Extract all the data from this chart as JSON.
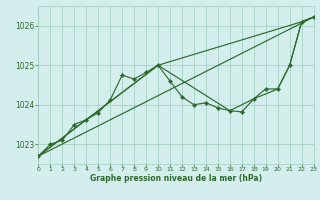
{
  "background_color": "#d4eeee",
  "grid_color": "#a0ccbc",
  "line_color": "#2d6b2d",
  "xlim": [
    0,
    23
  ],
  "ylim": [
    1022.5,
    1026.5
  ],
  "yticks": [
    1023,
    1024,
    1025,
    1026
  ],
  "xticks": [
    0,
    1,
    2,
    3,
    4,
    5,
    6,
    7,
    8,
    9,
    10,
    11,
    12,
    13,
    14,
    15,
    16,
    17,
    18,
    19,
    20,
    21,
    22,
    23
  ],
  "xlabel": "Graphe pression niveau de la mer (hPa)",
  "line1_pts": [
    [
      0,
      1022.7
    ],
    [
      1,
      1023.0
    ],
    [
      2,
      1023.1
    ],
    [
      3,
      1023.5
    ],
    [
      4,
      1023.62
    ],
    [
      5,
      1023.8
    ],
    [
      6,
      1024.12
    ],
    [
      7,
      1024.75
    ],
    [
      8,
      1024.65
    ],
    [
      9,
      1024.82
    ],
    [
      10,
      1025.0
    ],
    [
      11,
      1024.6
    ],
    [
      12,
      1024.2
    ],
    [
      13,
      1024.0
    ],
    [
      14,
      1024.05
    ],
    [
      15,
      1023.92
    ],
    [
      16,
      1023.85
    ],
    [
      17,
      1023.82
    ],
    [
      18,
      1024.15
    ],
    [
      19,
      1024.4
    ],
    [
      20,
      1024.4
    ],
    [
      21,
      1025.0
    ],
    [
      22,
      1026.1
    ],
    [
      23,
      1026.22
    ]
  ],
  "line2_pts": [
    [
      0,
      1022.7
    ],
    [
      4,
      1023.62
    ],
    [
      10,
      1025.0
    ],
    [
      22,
      1026.1
    ],
    [
      23,
      1026.22
    ]
  ],
  "line3_pts": [
    [
      0,
      1022.7
    ],
    [
      23,
      1026.22
    ]
  ],
  "line4_pts": [
    [
      0,
      1022.7
    ],
    [
      10,
      1025.0
    ],
    [
      16,
      1023.85
    ],
    [
      18,
      1024.15
    ],
    [
      20,
      1024.4
    ],
    [
      21,
      1025.0
    ],
    [
      22,
      1026.1
    ],
    [
      23,
      1026.22
    ]
  ]
}
